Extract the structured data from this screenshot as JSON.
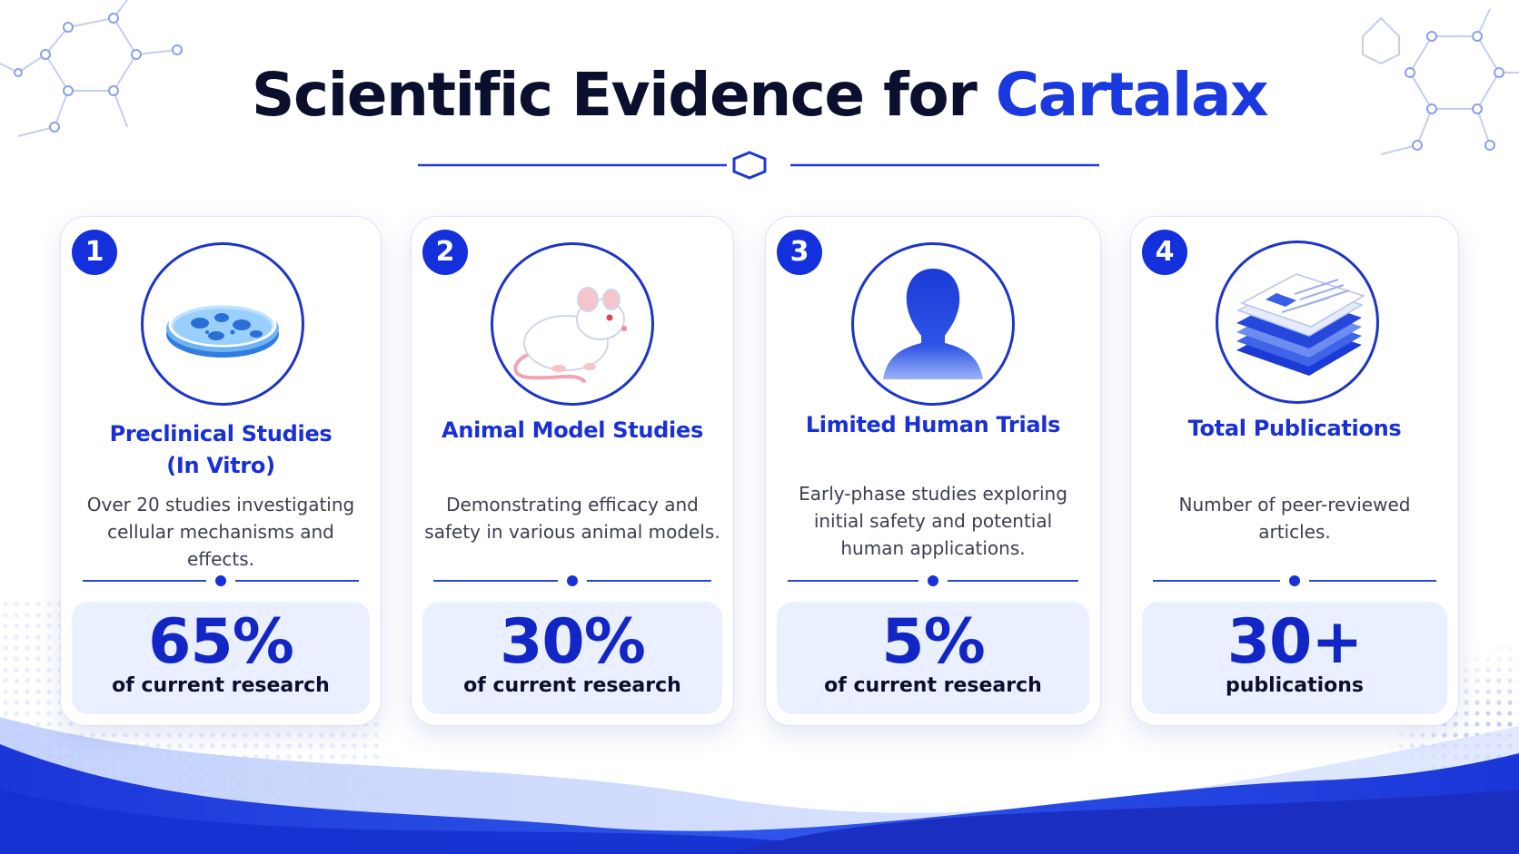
{
  "header": {
    "title_main": "Scientific Evidence for ",
    "title_accent": "Cartalax"
  },
  "colors": {
    "primary": "#1a3ae0",
    "dark_text": "#0b0f2e",
    "card_title": "#1830d6",
    "stat_bg": "#eaf0ff"
  },
  "cards": [
    {
      "number": "1",
      "icon": "petri-dish-icon",
      "title_line1": "Preclinical Studies",
      "title_line2": "(In Vitro)",
      "desc_line1": "Over 20 studies investigating",
      "desc_line2": "cellular mechanisms and effects.",
      "stat_value": "65%",
      "stat_label": "of current research"
    },
    {
      "number": "2",
      "icon": "lab-rat-icon",
      "title_line1": "Animal Model Studies",
      "desc_line1": "Demonstrating efficacy and",
      "desc_line2": "safety in various animal models.",
      "stat_value": "30%",
      "stat_label": "of current research"
    },
    {
      "number": "3",
      "icon": "person-silhouette-icon",
      "title_line1": "Limited Human Trials",
      "desc_line1": "Early-phase studies exploring",
      "desc_line2": "initial safety and potential",
      "desc_line3": "human applications.",
      "stat_value": "5%",
      "stat_label": "of current research"
    },
    {
      "number": "4",
      "icon": "publications-stack-icon",
      "title_line1": "Total Publications",
      "desc_line1": "Number of peer-reviewed",
      "desc_line2": "articles.",
      "stat_value": "30+",
      "stat_label": "publications"
    }
  ]
}
